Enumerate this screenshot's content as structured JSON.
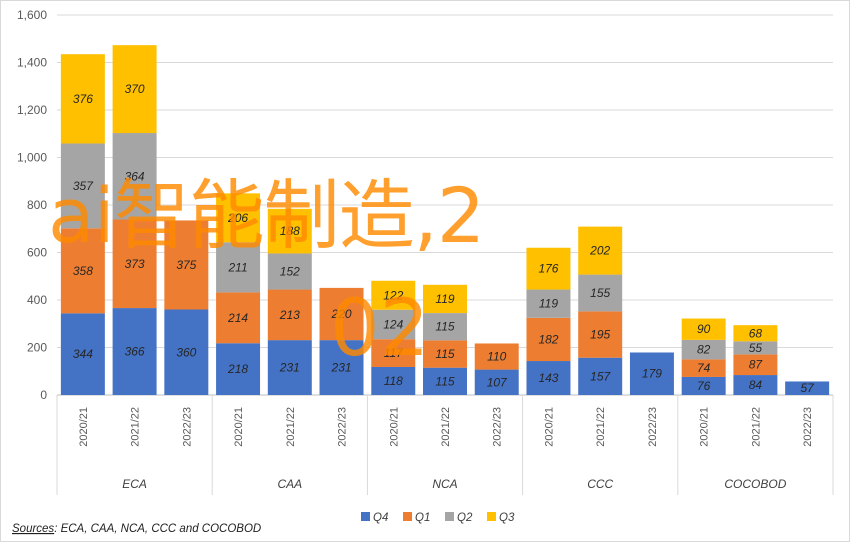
{
  "chart_data": {
    "type": "bar",
    "stacked": true,
    "ylim": [
      0,
      1600
    ],
    "yticks": [
      "0",
      "200",
      "400",
      "600",
      "800",
      "1,000",
      "1,200",
      "1,400",
      "1,600"
    ],
    "grid": true,
    "legend_position": "bottom",
    "groups": [
      {
        "name": "ECA",
        "categories": [
          "2020/21",
          "2021/22",
          "2022/23"
        ]
      },
      {
        "name": "CAA",
        "categories": [
          "2020/21",
          "2021/22",
          "2022/23"
        ]
      },
      {
        "name": "NCA",
        "categories": [
          "2020/21",
          "2021/22",
          "2022/23"
        ]
      },
      {
        "name": "CCC",
        "categories": [
          "2020/21",
          "2021/22",
          "2022/23"
        ]
      },
      {
        "name": "COCOBOD",
        "categories": [
          "2020/21",
          "2021/22",
          "2022/23"
        ]
      }
    ],
    "series": [
      {
        "name": "Q4",
        "color": "#4472c4",
        "values": [
          344,
          366,
          360,
          218,
          231,
          231,
          118,
          115,
          107,
          143,
          157,
          179,
          76,
          84,
          57
        ]
      },
      {
        "name": "Q1",
        "color": "#ed7d31",
        "values": [
          358,
          373,
          375,
          214,
          213,
          220,
          117,
          115,
          110,
          182,
          195,
          null,
          74,
          87,
          null
        ]
      },
      {
        "name": "Q2",
        "color": "#a5a5a5",
        "values": [
          357,
          364,
          null,
          211,
          152,
          null,
          124,
          115,
          null,
          119,
          155,
          null,
          82,
          55,
          null
        ]
      },
      {
        "name": "Q3",
        "color": "#ffc000",
        "values": [
          376,
          370,
          null,
          206,
          188,
          null,
          122,
          119,
          null,
          176,
          202,
          null,
          90,
          68,
          null
        ]
      }
    ]
  },
  "source_note": {
    "prefix": "Sources",
    "text": ": ECA, CAA, NCA, CCC and COCOBOD"
  },
  "watermark": {
    "line1": "ai智能制造,2",
    "line2": "02"
  }
}
